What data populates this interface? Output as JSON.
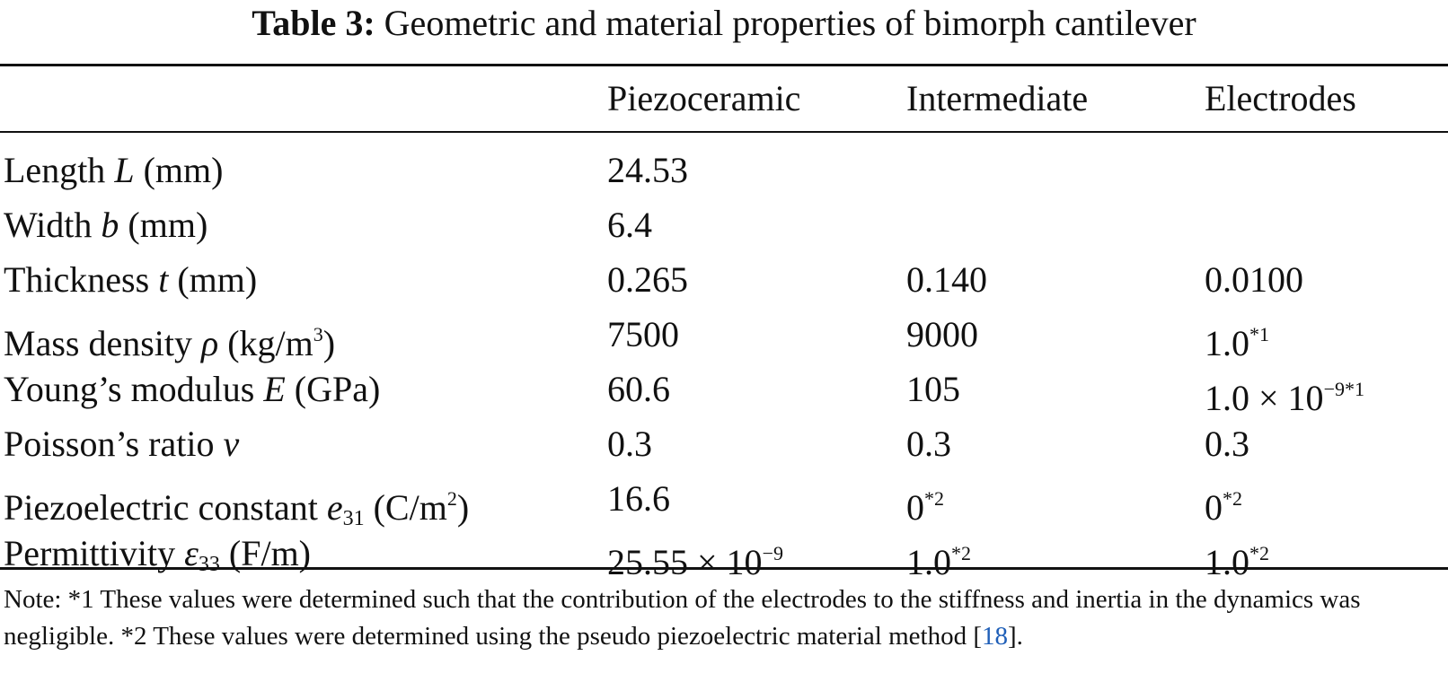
{
  "caption": {
    "label": "Table 3:",
    "text": "Geometric and material properties of bimorph cantilever"
  },
  "headers": [
    "",
    "Piezoceramic",
    "Intermediate",
    "Electrodes"
  ],
  "rows": [
    {
      "name": "Length ",
      "sym": "L",
      "sub": "",
      "sup_after": "",
      "unit": " (mm)",
      "unit_tail": "",
      "values": [
        {
          "v": "24.53",
          "sup": ""
        },
        {
          "v": "",
          "sup": ""
        },
        {
          "v": "",
          "sup": ""
        }
      ]
    },
    {
      "name": "Width ",
      "sym": "b",
      "sub": "",
      "sup_after": "",
      "unit": " (mm)",
      "unit_tail": "",
      "values": [
        {
          "v": "6.4",
          "sup": ""
        },
        {
          "v": "",
          "sup": ""
        },
        {
          "v": "",
          "sup": ""
        }
      ]
    },
    {
      "name": "Thickness ",
      "sym": "t",
      "sub": "",
      "sup_after": "",
      "unit": " (mm)",
      "unit_tail": "",
      "values": [
        {
          "v": "0.265",
          "sup": ""
        },
        {
          "v": "0.140",
          "sup": ""
        },
        {
          "v": "0.0100",
          "sup": ""
        }
      ]
    },
    {
      "name": "Mass density ",
      "sym": "ρ",
      "sub": "",
      "unit": " (kg/m",
      "unit_sup": "3",
      "unit_tail": ")",
      "values": [
        {
          "v": "7500",
          "sup": ""
        },
        {
          "v": "9000",
          "sup": ""
        },
        {
          "v": "1.0",
          "sup": "*1"
        }
      ]
    },
    {
      "name": "Young’s modulus ",
      "sym": "E",
      "sub": "",
      "unit": " (GPa)",
      "unit_sup": "",
      "unit_tail": "",
      "values": [
        {
          "v": "60.6",
          "sup": ""
        },
        {
          "v": "105",
          "sup": ""
        },
        {
          "v": "1.0 × 10",
          "sup": "−9*1"
        }
      ]
    },
    {
      "name": "Poisson’s ratio ",
      "sym": "ν",
      "sub": "",
      "unit": "",
      "unit_sup": "",
      "unit_tail": "",
      "values": [
        {
          "v": "0.3",
          "sup": ""
        },
        {
          "v": "0.3",
          "sup": ""
        },
        {
          "v": "0.3",
          "sup": ""
        }
      ]
    },
    {
      "name": "Piezoelectric constant ",
      "sym": "e",
      "sub": "31",
      "unit": " (C/m",
      "unit_sup": "2",
      "unit_tail": ")",
      "values": [
        {
          "v": "16.6",
          "sup": ""
        },
        {
          "v": "0",
          "sup": "*2"
        },
        {
          "v": "0",
          "sup": "*2"
        }
      ]
    },
    {
      "name": "Permittivity ",
      "sym": "ε",
      "sub": "33",
      "unit": " (F/m)",
      "unit_sup": "",
      "unit_tail": "",
      "values": [
        {
          "v": "25.55 × 10",
          "sup": "−9"
        },
        {
          "v": "1.0",
          "sup": "*2"
        },
        {
          "v": "1.0",
          "sup": "*2"
        }
      ]
    }
  ],
  "note": {
    "text": "Note: *1 These values were determined such that the contribution of the electrodes to the stiffness and inertia in the dynamics was negligible. *2 These values were determined using the pseudo piezoelectric material method [",
    "ref": "18",
    "tail": "]."
  }
}
